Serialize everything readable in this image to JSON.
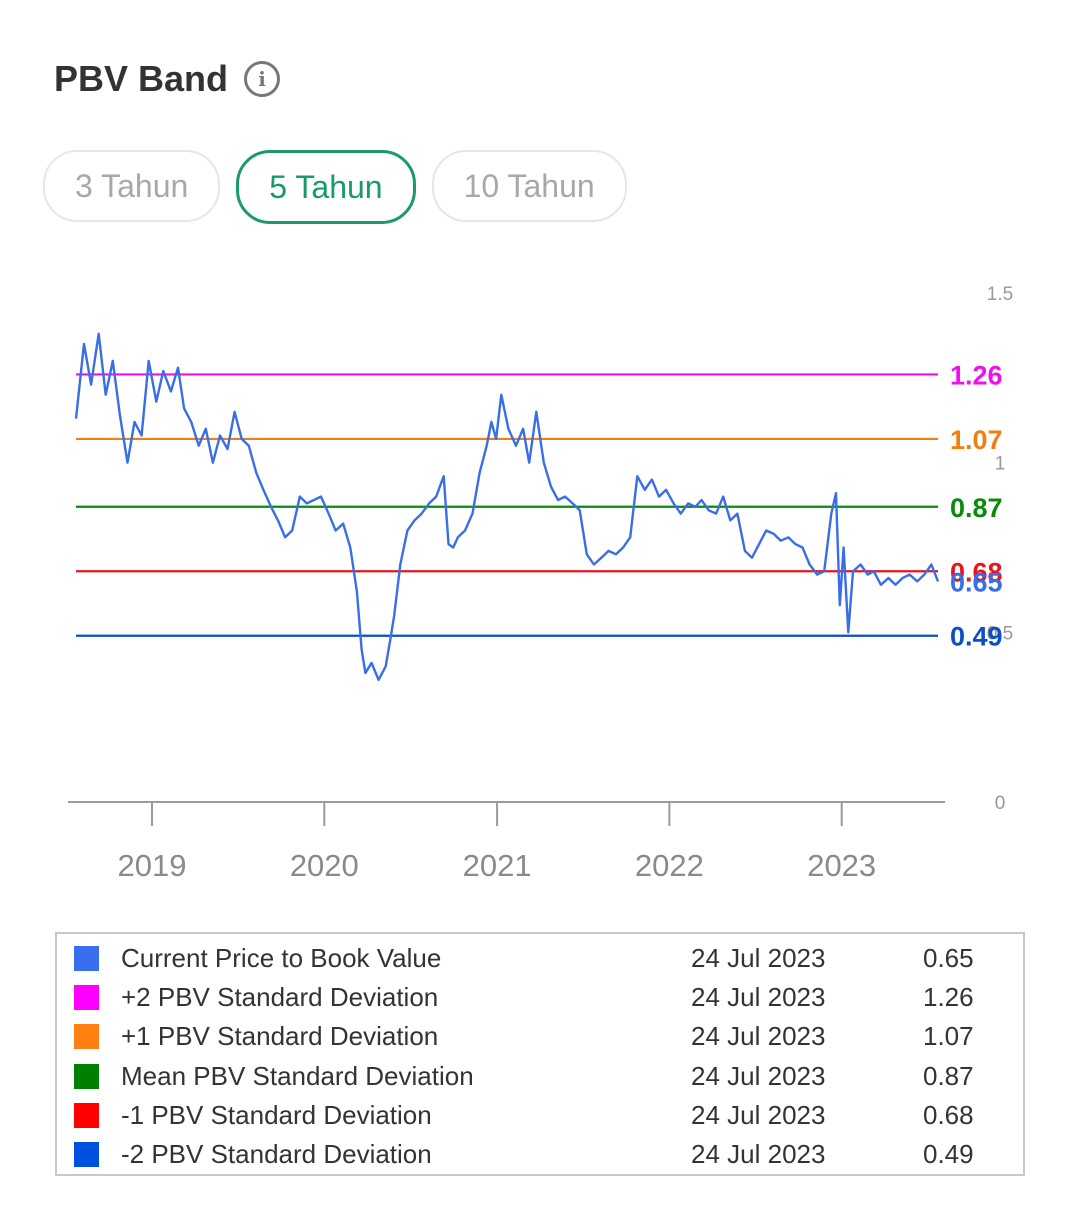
{
  "header": {
    "title": "PBV Band",
    "info_icon": "info-icon",
    "info_glyph": "i"
  },
  "tabs": [
    {
      "label": "3 Tahun",
      "active": false
    },
    {
      "label": "5 Tahun",
      "active": true
    },
    {
      "label": "10 Tahun",
      "active": false
    }
  ],
  "chart_data": {
    "type": "line",
    "x_range": [
      "2018-07-24",
      "2023-07-24"
    ],
    "x_ticks": [
      "2019",
      "2020",
      "2021",
      "2022",
      "2023"
    ],
    "y_ticks": [
      "1.5",
      "1",
      "0.5",
      "0"
    ],
    "ylim": [
      0,
      1.5
    ],
    "grid": false,
    "bands": [
      {
        "name": "+2 PBV Standard Deviation",
        "value": 1.26,
        "label": "1.26",
        "color": "#ee10ee"
      },
      {
        "name": "+1 PBV Standard Deviation",
        "value": 1.07,
        "label": "1.07",
        "color": "#f07f10"
      },
      {
        "name": "Mean PBV Standard Deviation",
        "value": 0.87,
        "label": "0.87",
        "color": "#0a8a0a"
      },
      {
        "name": "-1 PBV Standard Deviation",
        "value": 0.68,
        "label": "0.68",
        "color": "#e8141e"
      },
      {
        "name": "-2 PBV Standard Deviation",
        "value": 0.49,
        "label": "0.49",
        "color": "#0c4ec4"
      }
    ],
    "series": [
      {
        "name": "Current Price to Book Value",
        "color": "#3a6ee8",
        "end_label": "0.65",
        "points": [
          [
            "2018-07-24",
            1.13
          ],
          [
            "2018-08-10",
            1.35
          ],
          [
            "2018-08-25",
            1.23
          ],
          [
            "2018-09-10",
            1.38
          ],
          [
            "2018-09-25",
            1.2
          ],
          [
            "2018-10-10",
            1.3
          ],
          [
            "2018-10-25",
            1.14
          ],
          [
            "2018-11-10",
            1.0
          ],
          [
            "2018-11-25",
            1.12
          ],
          [
            "2018-12-10",
            1.08
          ],
          [
            "2018-12-25",
            1.3
          ],
          [
            "2019-01-10",
            1.18
          ],
          [
            "2019-01-25",
            1.27
          ],
          [
            "2019-02-10",
            1.21
          ],
          [
            "2019-02-25",
            1.28
          ],
          [
            "2019-03-10",
            1.16
          ],
          [
            "2019-03-25",
            1.12
          ],
          [
            "2019-04-10",
            1.05
          ],
          [
            "2019-04-25",
            1.1
          ],
          [
            "2019-05-10",
            1.0
          ],
          [
            "2019-05-25",
            1.08
          ],
          [
            "2019-06-10",
            1.04
          ],
          [
            "2019-06-25",
            1.15
          ],
          [
            "2019-07-10",
            1.07
          ],
          [
            "2019-07-25",
            1.05
          ],
          [
            "2019-08-10",
            0.97
          ],
          [
            "2019-08-25",
            0.92
          ],
          [
            "2019-09-10",
            0.87
          ],
          [
            "2019-09-25",
            0.83
          ],
          [
            "2019-10-10",
            0.78
          ],
          [
            "2019-10-25",
            0.8
          ],
          [
            "2019-11-10",
            0.9
          ],
          [
            "2019-11-25",
            0.88
          ],
          [
            "2019-12-10",
            0.89
          ],
          [
            "2019-12-25",
            0.9
          ],
          [
            "2020-01-10",
            0.85
          ],
          [
            "2020-01-25",
            0.8
          ],
          [
            "2020-02-10",
            0.82
          ],
          [
            "2020-02-25",
            0.75
          ],
          [
            "2020-03-10",
            0.62
          ],
          [
            "2020-03-20",
            0.45
          ],
          [
            "2020-03-28",
            0.38
          ],
          [
            "2020-04-10",
            0.41
          ],
          [
            "2020-04-25",
            0.36
          ],
          [
            "2020-05-10",
            0.4
          ],
          [
            "2020-05-20",
            0.48
          ],
          [
            "2020-05-28",
            0.55
          ],
          [
            "2020-06-10",
            0.7
          ],
          [
            "2020-06-25",
            0.8
          ],
          [
            "2020-07-10",
            0.83
          ],
          [
            "2020-07-25",
            0.85
          ],
          [
            "2020-08-10",
            0.88
          ],
          [
            "2020-08-25",
            0.9
          ],
          [
            "2020-09-10",
            0.96
          ],
          [
            "2020-09-20",
            0.76
          ],
          [
            "2020-09-30",
            0.75
          ],
          [
            "2020-10-10",
            0.78
          ],
          [
            "2020-10-25",
            0.8
          ],
          [
            "2020-11-10",
            0.85
          ],
          [
            "2020-11-25",
            0.97
          ],
          [
            "2020-12-10",
            1.05
          ],
          [
            "2020-12-20",
            1.12
          ],
          [
            "2020-12-30",
            1.07
          ],
          [
            "2021-01-10",
            1.2
          ],
          [
            "2021-01-25",
            1.1
          ],
          [
            "2021-02-10",
            1.05
          ],
          [
            "2021-02-25",
            1.1
          ],
          [
            "2021-03-10",
            1.0
          ],
          [
            "2021-03-25",
            1.15
          ],
          [
            "2021-04-10",
            1.0
          ],
          [
            "2021-04-25",
            0.93
          ],
          [
            "2021-05-10",
            0.89
          ],
          [
            "2021-05-25",
            0.9
          ],
          [
            "2021-06-10",
            0.88
          ],
          [
            "2021-06-25",
            0.86
          ],
          [
            "2021-07-10",
            0.73
          ],
          [
            "2021-07-25",
            0.7
          ],
          [
            "2021-08-10",
            0.72
          ],
          [
            "2021-08-25",
            0.74
          ],
          [
            "2021-09-10",
            0.73
          ],
          [
            "2021-09-25",
            0.75
          ],
          [
            "2021-10-10",
            0.78
          ],
          [
            "2021-10-25",
            0.96
          ],
          [
            "2021-11-10",
            0.92
          ],
          [
            "2021-11-25",
            0.95
          ],
          [
            "2021-12-10",
            0.9
          ],
          [
            "2021-12-25",
            0.92
          ],
          [
            "2022-01-10",
            0.88
          ],
          [
            "2022-01-25",
            0.85
          ],
          [
            "2022-02-10",
            0.88
          ],
          [
            "2022-02-25",
            0.87
          ],
          [
            "2022-03-10",
            0.89
          ],
          [
            "2022-03-25",
            0.86
          ],
          [
            "2022-04-10",
            0.85
          ],
          [
            "2022-04-25",
            0.9
          ],
          [
            "2022-05-10",
            0.83
          ],
          [
            "2022-05-25",
            0.85
          ],
          [
            "2022-06-10",
            0.74
          ],
          [
            "2022-06-25",
            0.72
          ],
          [
            "2022-07-10",
            0.76
          ],
          [
            "2022-07-25",
            0.8
          ],
          [
            "2022-08-10",
            0.79
          ],
          [
            "2022-08-25",
            0.77
          ],
          [
            "2022-09-10",
            0.78
          ],
          [
            "2022-09-25",
            0.76
          ],
          [
            "2022-10-10",
            0.75
          ],
          [
            "2022-10-25",
            0.7
          ],
          [
            "2022-11-10",
            0.67
          ],
          [
            "2022-11-25",
            0.68
          ],
          [
            "2022-12-10",
            0.85
          ],
          [
            "2022-12-20",
            0.91
          ],
          [
            "2022-12-28",
            0.58
          ],
          [
            "2023-01-05",
            0.75
          ],
          [
            "2023-01-15",
            0.5
          ],
          [
            "2023-01-25",
            0.68
          ],
          [
            "2023-02-10",
            0.7
          ],
          [
            "2023-02-25",
            0.67
          ],
          [
            "2023-03-10",
            0.68
          ],
          [
            "2023-03-25",
            0.64
          ],
          [
            "2023-04-10",
            0.66
          ],
          [
            "2023-04-25",
            0.64
          ],
          [
            "2023-05-10",
            0.66
          ],
          [
            "2023-05-25",
            0.67
          ],
          [
            "2023-06-10",
            0.65
          ],
          [
            "2023-06-25",
            0.67
          ],
          [
            "2023-07-10",
            0.7
          ],
          [
            "2023-07-24",
            0.65
          ]
        ]
      }
    ]
  },
  "legend": {
    "rows": [
      {
        "name": "Current Price to Book Value",
        "date": "24 Jul 2023",
        "value": "0.65",
        "color": "#3a6ef0"
      },
      {
        "name": "+2 PBV Standard Deviation",
        "date": "24 Jul 2023",
        "value": "1.26",
        "color": "#ff00ff"
      },
      {
        "name": "+1 PBV Standard Deviation",
        "date": "24 Jul 2023",
        "value": "1.07",
        "color": "#ff8010"
      },
      {
        "name": "Mean PBV Standard Deviation",
        "date": "24 Jul 2023",
        "value": "0.87",
        "color": "#008000"
      },
      {
        "name": "-1 PBV Standard Deviation",
        "date": "24 Jul 2023",
        "value": "0.68",
        "color": "#ff0000"
      },
      {
        "name": "-2 PBV Standard Deviation",
        "date": "24 Jul 2023",
        "value": "0.49",
        "color": "#0050e0"
      }
    ]
  }
}
